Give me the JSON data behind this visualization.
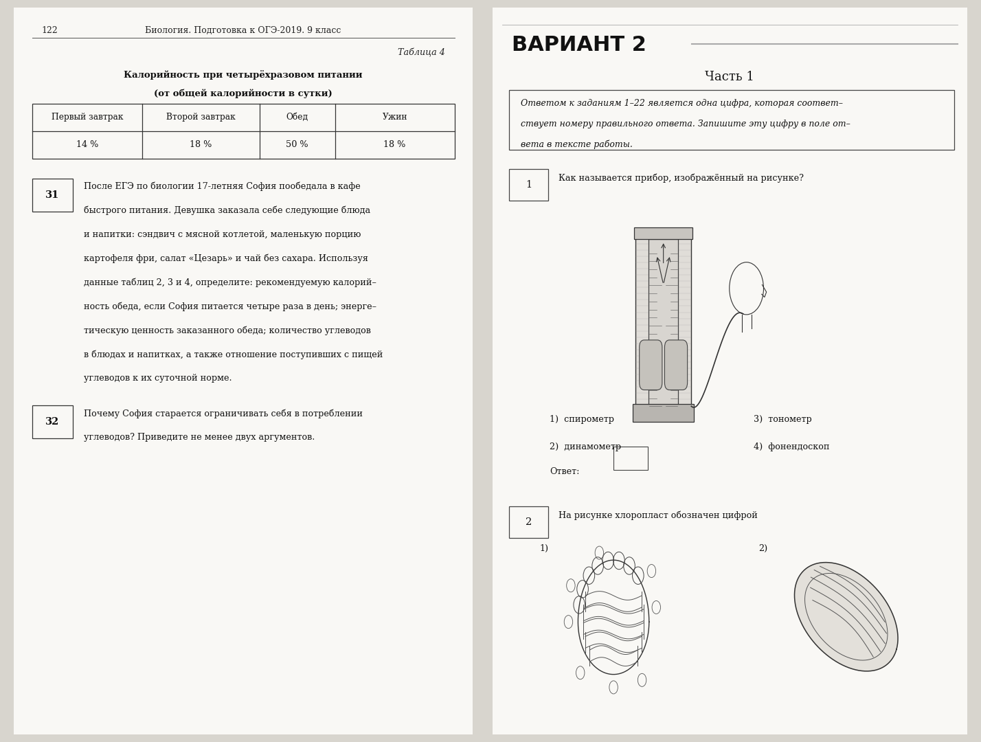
{
  "bg_color": "#e8e6e0",
  "page_bg": "#f9f8f5",
  "left_page_num": "122",
  "left_header": "Биология. Подготовка к ОГЭ-2019. 9 класс",
  "table_caption_italic": "Таблица 4",
  "table_title_line1": "Калорийность при четырёхразовом питании",
  "table_title_line2": "(от общей калорийности в сутки)",
  "table_headers": [
    "Первый завтрак",
    "Второй завтрак",
    "Обед",
    "Ужин"
  ],
  "table_values": [
    "14 %",
    "18 %",
    "50 %",
    "18 %"
  ],
  "q31_num": "31",
  "q31_lines": [
    "После ЕГЭ по биологии 17-летняя София пообедала в кафе",
    "быстрого питания. Девушка заказала себе следующие блюда",
    "и напитки: сэндвич с мясной котлетой, маленькую порцию",
    "картофеля фри, салат «Цезарь» и чай без сахара. Используя",
    "данные таблиц 2, 3 и 4, определите: рекомендуемую калорий–",
    "ность обеда, если София питается четыре раза в день; энерге–",
    "тическую ценность заказанного обеда; количество углеводов",
    "в блюдах и напитках, а также отношение поступивших с пищей",
    "углеводов к их суточной норме."
  ],
  "q32_num": "32",
  "q32_lines": [
    "Почему София старается ограничивать себя в потреблении",
    "углеводов? Приведите не менее двух аргументов."
  ],
  "right_header_bold": "ВАРИАНТ 2",
  "part1_title": "Часть 1",
  "instruction_lines": [
    "Ответом к заданиям 1–22 является одна цифра, которая соответ–",
    "ствует номеру правильного ответа. Запишите эту цифру в поле от–",
    "вета в тексте работы."
  ],
  "q1_num": "1",
  "q1_text": "Как называется прибор, изображённый на рисунке?",
  "q1_answers_col1": [
    "1)  спирометр",
    "2)  динамометр"
  ],
  "q1_answers_col2": [
    "3)  тонометр",
    "4)  фонендоскоп"
  ],
  "q1_answer_label": "Ответ:",
  "q2_num": "2",
  "q2_text": "На рисунке хлоропласт обозначен цифрой",
  "q2_answer_1": "1)",
  "q2_answer_2": "2)"
}
